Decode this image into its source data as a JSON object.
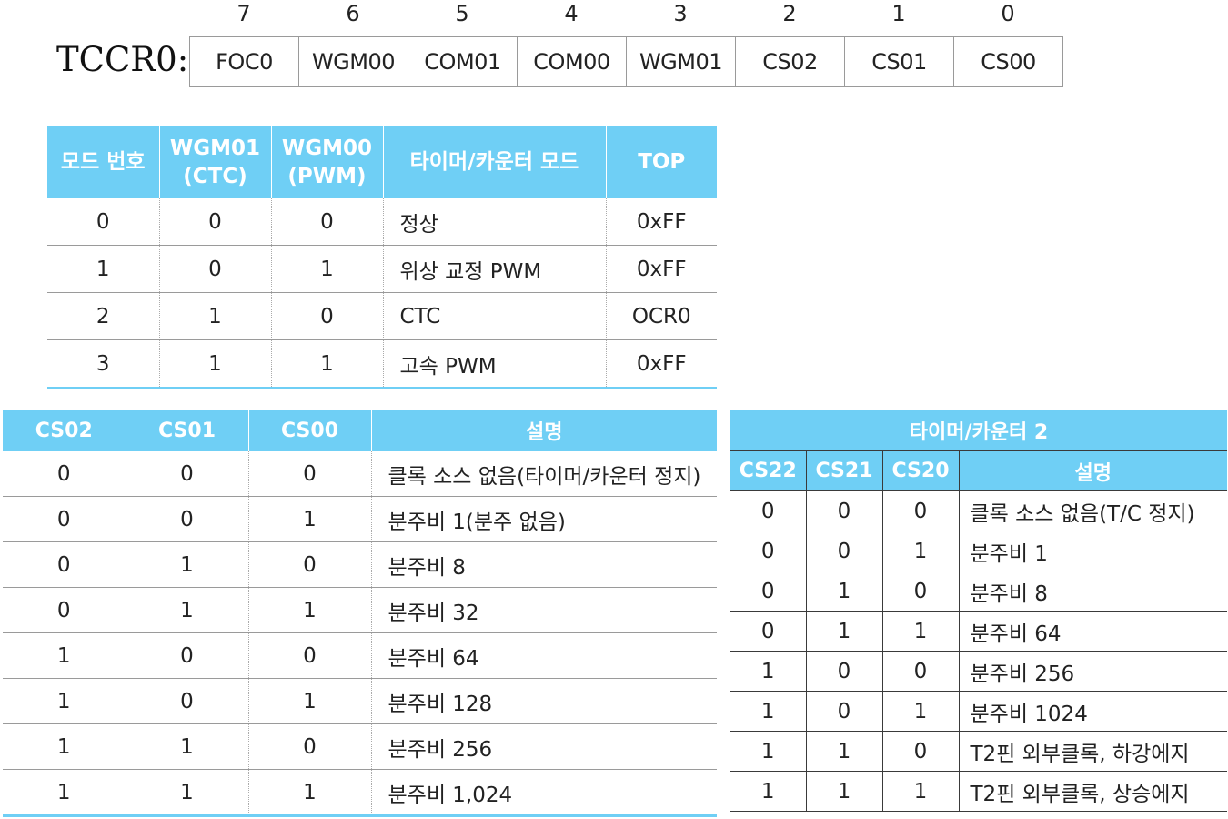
{
  "register": {
    "name": "TCCR0:",
    "bit_numbers": [
      "7",
      "6",
      "5",
      "4",
      "3",
      "2",
      "1",
      "0"
    ],
    "fields": [
      "FOC0",
      "WGM00",
      "COM01",
      "COM00",
      "WGM01",
      "CS02",
      "CS01",
      "CS00"
    ]
  },
  "mode_table": {
    "headers": {
      "mode_no": "모드 번호",
      "wgm01_line1": "WGM01",
      "wgm01_line2": "(CTC)",
      "wgm00_line1": "WGM00",
      "wgm00_line2": "(PWM)",
      "mode": "타이머/카운터 모드",
      "top": "TOP"
    },
    "rows": [
      [
        "0",
        "0",
        "0",
        "정상",
        "0xFF"
      ],
      [
        "1",
        "0",
        "1",
        "위상 교정 PWM",
        "0xFF"
      ],
      [
        "2",
        "1",
        "0",
        "CTC",
        "OCR0"
      ],
      [
        "3",
        "1",
        "1",
        "고속 PWM",
        "0xFF"
      ]
    ]
  },
  "timer0_prescaler": {
    "headers": [
      "CS02",
      "CS01",
      "CS00",
      "설명"
    ],
    "rows": [
      [
        "0",
        "0",
        "0",
        "클록 소스 없음(타이머/카운터 정지)"
      ],
      [
        "0",
        "0",
        "1",
        "분주비 1(분주 없음)"
      ],
      [
        "0",
        "1",
        "0",
        "분주비 8"
      ],
      [
        "0",
        "1",
        "1",
        "분주비 32"
      ],
      [
        "1",
        "0",
        "0",
        "분주비 64"
      ],
      [
        "1",
        "0",
        "1",
        "분주비 128"
      ],
      [
        "1",
        "1",
        "0",
        "분주비 256"
      ],
      [
        "1",
        "1",
        "1",
        "분주비 1,024"
      ]
    ]
  },
  "timer2_prescaler": {
    "title": "타이머/카운터 2",
    "headers": [
      "CS22",
      "CS21",
      "CS20",
      "설명"
    ],
    "rows": [
      [
        "0",
        "0",
        "0",
        "클록 소스 없음(T/C 정지)"
      ],
      [
        "0",
        "0",
        "1",
        "분주비 1"
      ],
      [
        "0",
        "1",
        "0",
        "분주비 8"
      ],
      [
        "0",
        "1",
        "1",
        "분주비 64"
      ],
      [
        "1",
        "0",
        "0",
        "분주비 256"
      ],
      [
        "1",
        "0",
        "1",
        "분주비 1024"
      ],
      [
        "1",
        "1",
        "0",
        "T2핀 외부클록, 하강에지"
      ],
      [
        "1",
        "1",
        "1",
        "T2핀 외부클록, 상승에지"
      ]
    ]
  },
  "colors": {
    "header_bg": "#6fcff5",
    "header_text": "#ffffff"
  }
}
